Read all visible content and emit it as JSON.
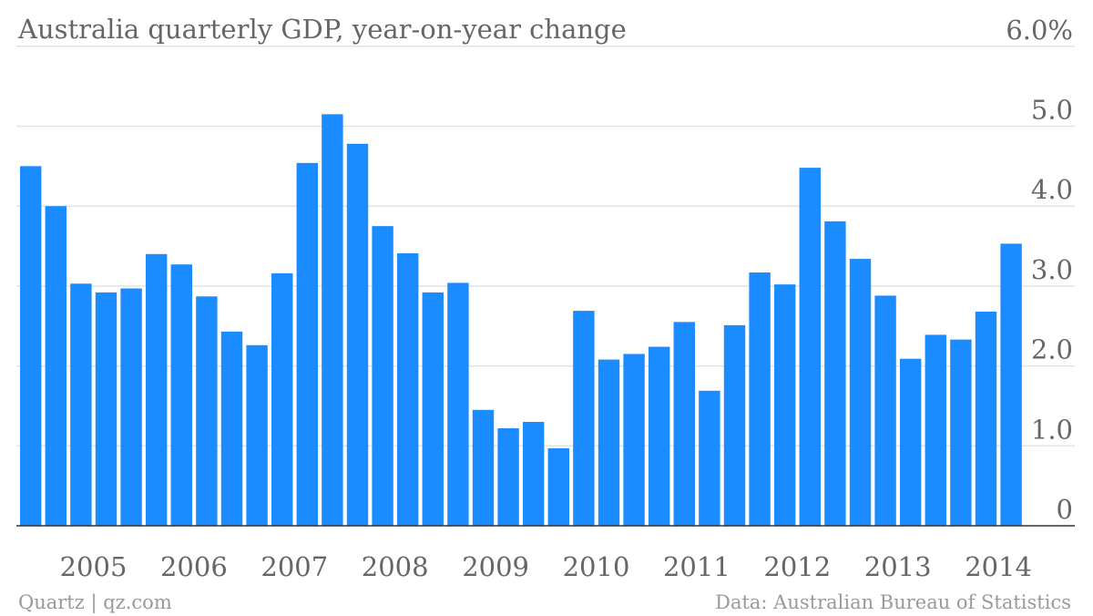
{
  "colors": {
    "bar": "#1a8cff",
    "grid": "#e2e2e2",
    "text": "#666666",
    "footer_text": "#999999"
  },
  "footer": {
    "source_left": "Quartz | qz.com",
    "source_right": "Data: Australian Bureau of Statistics"
  },
  "chart_data": {
    "type": "bar",
    "title": "Australia quarterly GDP, year-on-year change",
    "xlabel": "",
    "ylabel": "",
    "ylim": [
      0,
      6
    ],
    "grid": true,
    "y_axis_side": "right",
    "y_ticks": [
      {
        "value": 0,
        "label": "0"
      },
      {
        "value": 1,
        "label": "1.0"
      },
      {
        "value": 2,
        "label": "2.0"
      },
      {
        "value": 3,
        "label": "3.0"
      },
      {
        "value": 4,
        "label": "4.0"
      },
      {
        "value": 5,
        "label": "5.0"
      },
      {
        "value": 6,
        "label": "6.0%"
      }
    ],
    "x_year_labels": [
      {
        "label": "2005",
        "quarter_index": 3
      },
      {
        "label": "2006",
        "quarter_index": 7
      },
      {
        "label": "2007",
        "quarter_index": 11
      },
      {
        "label": "2008",
        "quarter_index": 15
      },
      {
        "label": "2009",
        "quarter_index": 19
      },
      {
        "label": "2010",
        "quarter_index": 23
      },
      {
        "label": "2011",
        "quarter_index": 27
      },
      {
        "label": "2012",
        "quarter_index": 31
      },
      {
        "label": "2013",
        "quarter_index": 35
      },
      {
        "label": "2014",
        "quarter_index": 39
      }
    ],
    "values": [
      4.5,
      4.0,
      3.03,
      2.92,
      2.97,
      3.4,
      3.27,
      2.87,
      2.43,
      2.26,
      3.16,
      4.54,
      5.15,
      4.78,
      3.75,
      3.41,
      2.92,
      3.04,
      1.45,
      1.22,
      1.3,
      0.97,
      2.69,
      2.08,
      2.15,
      2.24,
      2.55,
      1.69,
      2.51,
      3.17,
      3.02,
      4.48,
      3.81,
      3.34,
      2.88,
      2.09,
      2.39,
      2.33,
      2.68,
      3.53
    ]
  }
}
